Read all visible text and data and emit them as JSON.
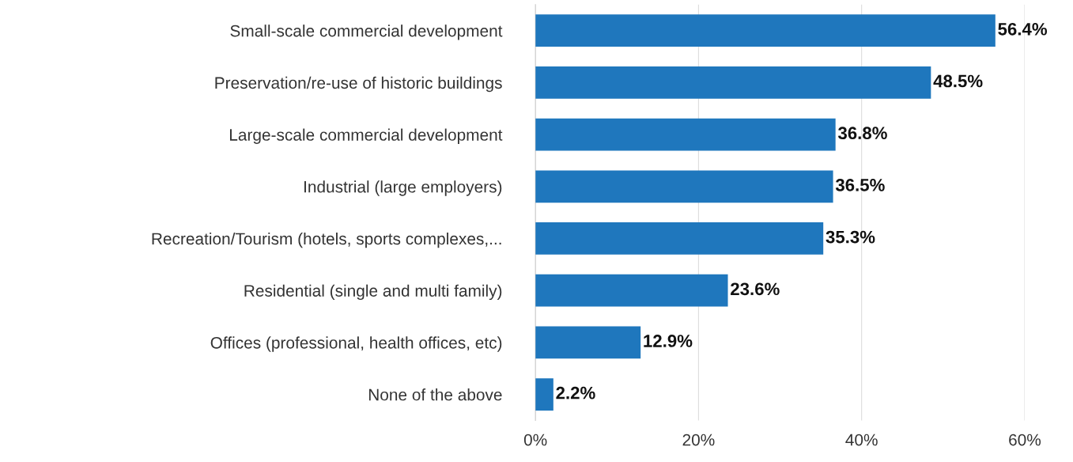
{
  "chart_data": {
    "type": "bar",
    "orientation": "horizontal",
    "categories": [
      "Small-scale commercial development",
      "Preservation/re-use of historic buildings",
      "Large-scale commercial development",
      "Industrial (large employers)",
      "Recreation/Tourism (hotels, sports complexes,...",
      "Residential (single and multi family)",
      "Offices (professional, health offices, etc)",
      "None of the above"
    ],
    "values": [
      56.4,
      48.5,
      36.8,
      36.5,
      35.3,
      23.6,
      12.9,
      2.2
    ],
    "value_labels": [
      "56.4%",
      "48.5%",
      "36.8%",
      "36.5%",
      "35.3%",
      "23.6%",
      "12.9%",
      "2.2%"
    ],
    "color": "#1f77bd",
    "xlim": [
      0,
      60
    ],
    "xticks": [
      {
        "value": 0,
        "label": "0%"
      },
      {
        "value": 20,
        "label": "20%"
      },
      {
        "value": 40,
        "label": "40%"
      },
      {
        "value": 60,
        "label": "60%"
      }
    ],
    "grid": "x"
  }
}
